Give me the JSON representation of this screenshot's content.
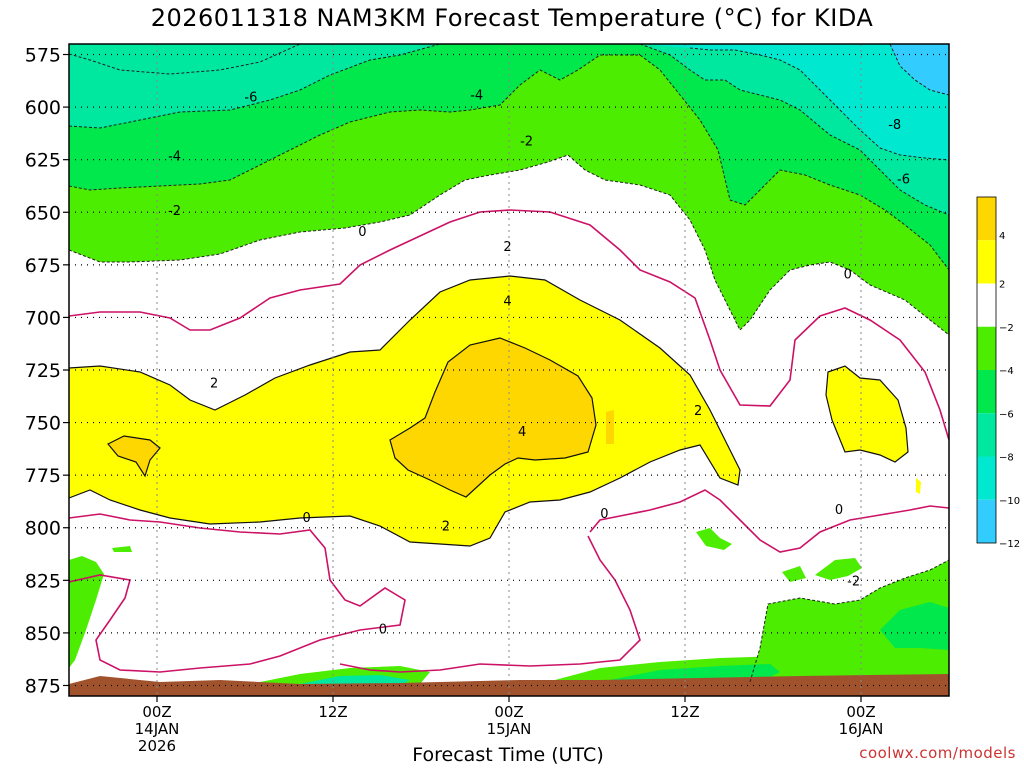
{
  "title": "2026011318 NAM3KM Forecast Temperature (°C) for KIDA",
  "credit": "coolwx.com/models",
  "chart_data": {
    "type": "contour",
    "title": "2026011318 NAM3KM Forecast Temperature (°C) for KIDA",
    "xlabel": "Forecast Time (UTC)",
    "ylabel": "",
    "y_axis": {
      "ticks": [
        575,
        600,
        625,
        650,
        675,
        700,
        725,
        750,
        775,
        800,
        825,
        850,
        875
      ],
      "ylim": [
        570,
        880
      ],
      "inverted": true
    },
    "x_axis": {
      "ticks": [
        {
          "line1": "00Z",
          "line2": "14JAN",
          "line3": "2026",
          "hour": 6
        },
        {
          "line1": "12Z",
          "line2": "",
          "line3": "",
          "hour": 18
        },
        {
          "line1": "00Z",
          "line2": "15JAN",
          "line3": "",
          "hour": 30
        },
        {
          "line1": "12Z",
          "line2": "",
          "line3": "",
          "hour": 42
        },
        {
          "line1": "00Z",
          "line2": "16JAN",
          "line3": "",
          "hour": 54
        }
      ],
      "xlim": [
        0,
        60
      ]
    },
    "grid": true,
    "colorbar": {
      "labels": [
        "4",
        "2",
        "−2",
        "−4",
        "−6",
        "−8",
        "−10",
        "−12"
      ],
      "colors": [
        "#ffd700",
        "#ffff00",
        "#ffffff",
        "#4ced00",
        "#00e84c",
        "#00e8a0",
        "#00e8d0",
        "#33ccff"
      ]
    },
    "colors": {
      "contour_negative": "#222222",
      "zero_isotherm": "#cc1166",
      "ground": "#a0522d"
    },
    "contour_labels": [
      {
        "text": "-6",
        "hour": 12.4,
        "p": 595
      },
      {
        "text": "-4",
        "hour": 27.8,
        "p": 594
      },
      {
        "text": "-4",
        "hour": 7.2,
        "p": 623
      },
      {
        "text": "-2",
        "hour": 7.2,
        "p": 649
      },
      {
        "text": "-2",
        "hour": 31.2,
        "p": 616
      },
      {
        "text": "-8",
        "hour": 56.3,
        "p": 608
      },
      {
        "text": "-6",
        "hour": 56.9,
        "p": 634
      },
      {
        "text": "0",
        "hour": 20.0,
        "p": 659
      },
      {
        "text": "2",
        "hour": 29.9,
        "p": 666
      },
      {
        "text": "4",
        "hour": 29.9,
        "p": 692
      },
      {
        "text": "0",
        "hour": 53.1,
        "p": 679
      },
      {
        "text": "2",
        "hour": 9.9,
        "p": 731
      },
      {
        "text": "4",
        "hour": 30.9,
        "p": 754
      },
      {
        "text": "2",
        "hour": 42.9,
        "p": 744
      },
      {
        "text": "0",
        "hour": 16.2,
        "p": 795
      },
      {
        "text": "2",
        "hour": 25.7,
        "p": 799
      },
      {
        "text": "0",
        "hour": 36.5,
        "p": 793
      },
      {
        "text": "0",
        "hour": 52.5,
        "p": 791
      },
      {
        "text": "0",
        "hour": 21.4,
        "p": 848
      },
      {
        "text": "-2",
        "hour": 53.5,
        "p": 825
      }
    ]
  }
}
